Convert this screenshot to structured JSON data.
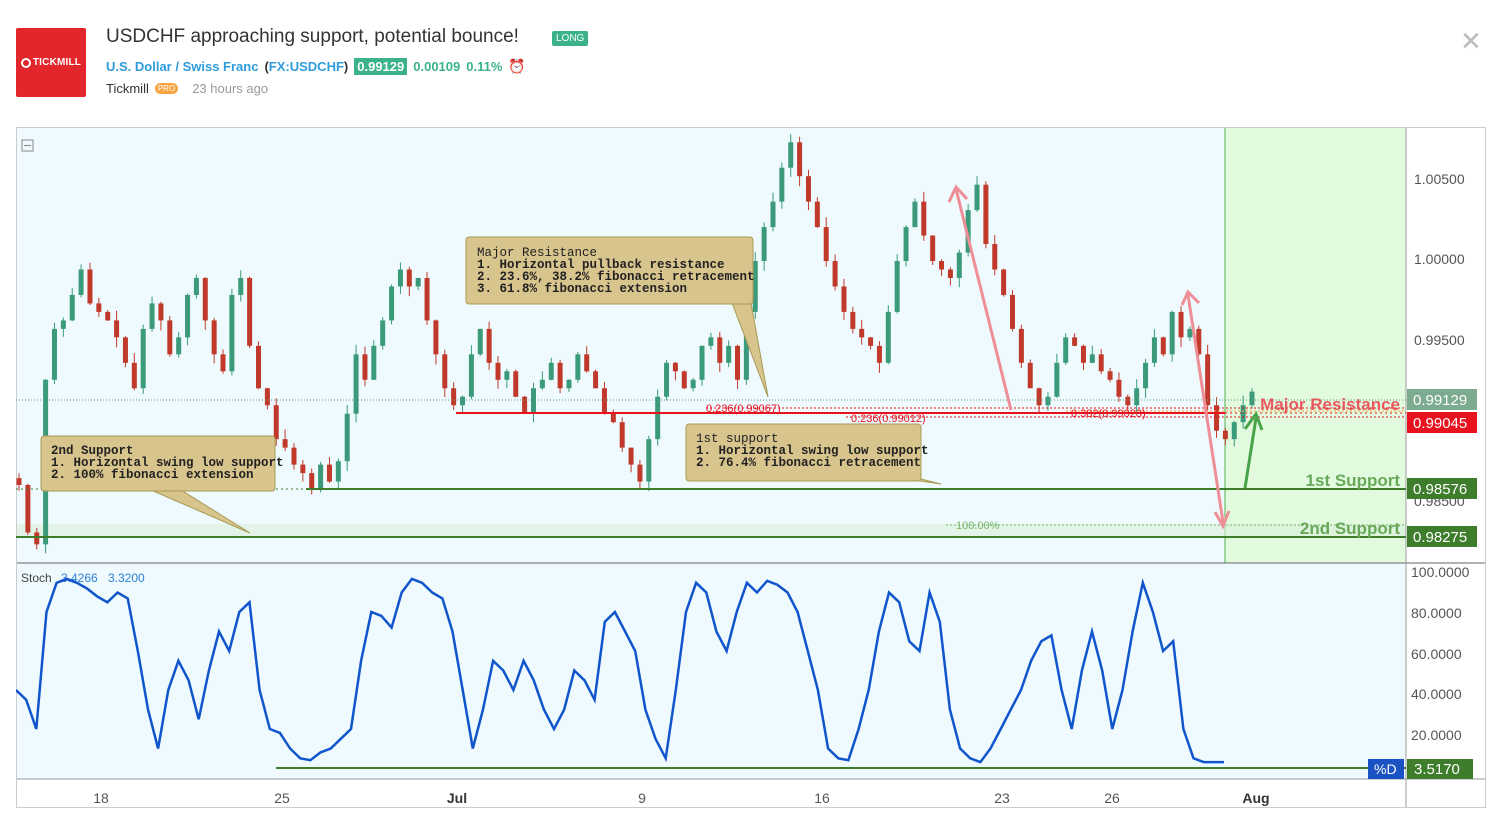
{
  "header": {
    "logo_text": "TICKMILL",
    "title": "USDCHF approaching support, potential bounce!",
    "direction_badge": "LONG",
    "symbol_name": "U.S. Dollar / Swiss Franc",
    "symbol_open": "(",
    "symbol_code": "FX:USDCHF",
    "symbol_close": ")",
    "price": "0.99129",
    "change": "0.00109",
    "change_pct": "0.11%",
    "author": "Tickmill",
    "author_badge": "PRO",
    "time_ago": "23 hours ago",
    "close_icon": "close-icon",
    "alarm_icon": "alarm-clock-icon"
  },
  "colors": {
    "candle_up": "#3a9a7a",
    "candle_down": "#c0392b",
    "resistance": "#e8131f",
    "support": "#3d7d2b",
    "stoch": "#1155cc",
    "future_zone": "#e2fbdf",
    "chart_bg": "#eefafd"
  },
  "chart_data": {
    "type": "candlestick",
    "symbol": "USDCHF",
    "x_tick_labels": [
      "18",
      "25",
      "Jul",
      "9",
      "16",
      "23",
      "26",
      "Aug"
    ],
    "price_axis_ticks": [
      "1.00500",
      "1.00000",
      "0.99500",
      "0.98500"
    ],
    "ylim": [
      0.9812,
      1.0069
    ],
    "price_series": [
      0.9858,
      0.983,
      0.9823,
      0.992,
      0.995,
      0.9955,
      0.997,
      0.9985,
      0.9965,
      0.996,
      0.9955,
      0.9945,
      0.993,
      0.9915,
      0.995,
      0.9965,
      0.9955,
      0.9935,
      0.9945,
      0.997,
      0.998,
      0.9955,
      0.9935,
      0.9925,
      0.997,
      0.998,
      0.994,
      0.9915,
      0.9905,
      0.9885,
      0.988,
      0.987,
      0.9865,
      0.9855,
      0.987,
      0.986,
      0.9872,
      0.99,
      0.9935,
      0.992,
      0.994,
      0.9955,
      0.9975,
      0.9985,
      0.9975,
      0.998,
      0.9955,
      0.9935,
      0.9915,
      0.9905,
      0.991,
      0.9935,
      0.995,
      0.993,
      0.992,
      0.9925,
      0.991,
      0.99,
      0.9915,
      0.992,
      0.993,
      0.9915,
      0.992,
      0.9935,
      0.9925,
      0.9915,
      0.99,
      0.9895,
      0.988,
      0.987,
      0.986,
      0.9885,
      0.991,
      0.993,
      0.9925,
      0.9915,
      0.992,
      0.994,
      0.9945,
      0.993,
      0.994,
      0.992,
      0.996,
      0.999,
      1.001,
      1.0025,
      1.0045,
      1.006,
      1.004,
      1.0025,
      1.001,
      0.999,
      0.9975,
      0.996,
      0.995,
      0.9945,
      0.994,
      0.993,
      0.996,
      0.999,
      1.001,
      1.0025,
      1.0005,
      0.999,
      0.9985,
      0.998,
      0.9995,
      1.002,
      1.0035,
      1.0,
      0.9985,
      0.997,
      0.995,
      0.993,
      0.9915,
      0.9905,
      0.991,
      0.993,
      0.9945,
      0.994,
      0.993,
      0.9935,
      0.9925,
      0.992,
      0.991,
      0.9905,
      0.9915,
      0.993,
      0.9945,
      0.9935,
      0.996,
      0.9945,
      0.995,
      0.9935,
      0.9905,
      0.989,
      0.9885,
      0.9895,
      0.9905,
      0.9913
    ],
    "levels": [
      {
        "label": "Major Resistance",
        "value": 0.99045,
        "axis_label": "0.99045",
        "color": "#e8131f"
      },
      {
        "label": "1st Support",
        "value": 0.98576,
        "axis_label": "0.98576",
        "color": "#3d7d2b"
      },
      {
        "label": "2nd Support",
        "value": 0.98275,
        "axis_label": "0.98275",
        "color": "#3d7d2b"
      }
    ],
    "current_price": {
      "value": 0.99129,
      "axis_label": "0.99129"
    },
    "fib_labels": [
      "0.236(0.99067)",
      "0.236(0.99012)",
      "0.382(0.99023)",
      "100.00%"
    ],
    "annotations": [
      {
        "id": "major-resistance",
        "lines": [
          "Major Resistance",
          "1. Horizontal pullback resistance",
          "2. 23.6%, 38.2% fibonacci retracement",
          "3. 61.8% fibonacci extension"
        ]
      },
      {
        "id": "1st-support",
        "lines": [
          "1st support",
          "1. Horizontal swing low support",
          "2. 76.4% fibonacci retracement"
        ]
      },
      {
        "id": "2nd-support",
        "lines": [
          "2nd Support",
          "1. Horizontal swing low support",
          "2. 100% fibonacci extension"
        ]
      }
    ],
    "indicator": {
      "name": "Stoch",
      "value1": "3.4266",
      "value2": "3.3200",
      "axis_ticks": [
        "100.0000",
        "80.0000",
        "60.0000",
        "40.0000",
        "20.0000"
      ],
      "ylim": [
        0,
        100
      ],
      "badge_label": "%D",
      "current_label": "3.5170",
      "current_value": 3.517,
      "values": [
        40,
        35,
        20,
        80,
        95,
        97,
        95,
        92,
        88,
        85,
        90,
        87,
        60,
        30,
        10,
        40,
        55,
        45,
        25,
        50,
        70,
        60,
        80,
        85,
        40,
        20,
        18,
        10,
        5,
        4,
        8,
        10,
        15,
        20,
        55,
        80,
        78,
        72,
        90,
        97,
        95,
        90,
        87,
        70,
        40,
        10,
        30,
        55,
        50,
        40,
        55,
        45,
        30,
        20,
        30,
        50,
        45,
        35,
        75,
        80,
        70,
        60,
        30,
        15,
        5,
        40,
        80,
        95,
        90,
        70,
        60,
        80,
        95,
        90,
        96,
        94,
        90,
        80,
        60,
        40,
        10,
        5,
        4,
        20,
        40,
        70,
        90,
        85,
        65,
        60,
        90,
        75,
        30,
        10,
        5,
        3,
        10,
        20,
        30,
        40,
        55,
        65,
        68,
        40,
        20,
        50,
        70,
        50,
        20,
        40,
        70,
        95,
        80,
        60,
        65,
        20,
        5,
        3,
        3,
        3
      ]
    }
  }
}
